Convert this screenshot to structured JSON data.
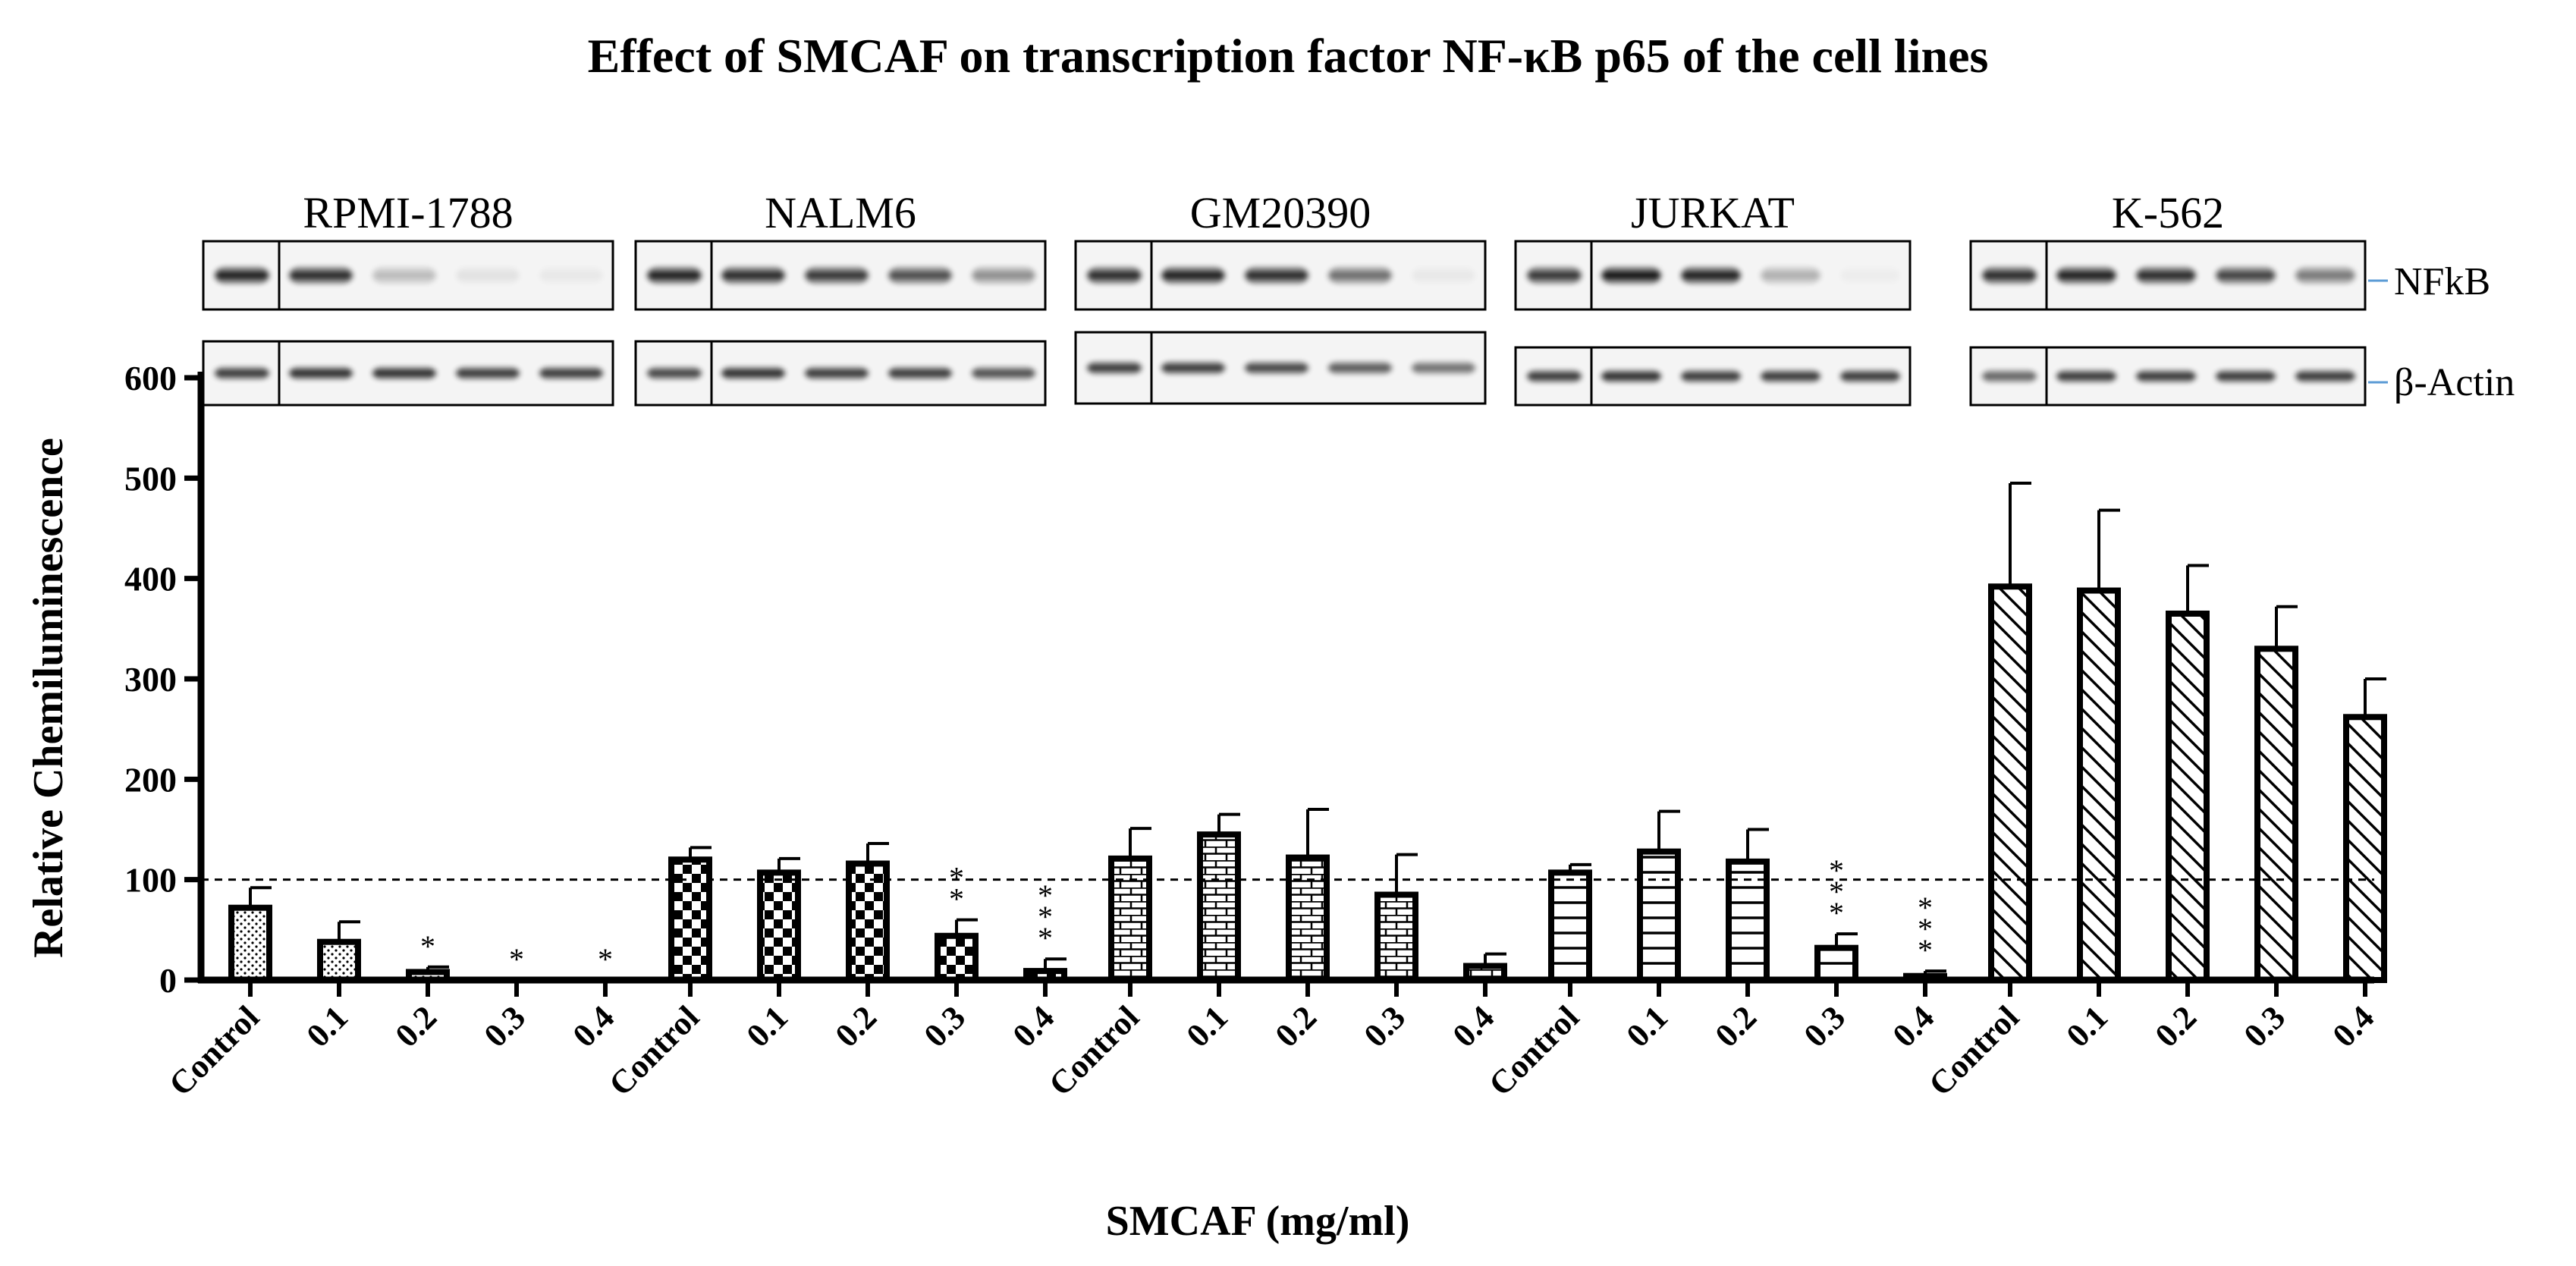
{
  "chart_data": {
    "type": "bar",
    "title": "Effect of SMCAF on transcription factor NF-κB p65 of the cell lines",
    "xlabel": "SMCAF (mg/ml)",
    "ylabel": "Relative Chemiluminescence",
    "ylim": [
      0,
      600
    ],
    "yticks": [
      0,
      100,
      200,
      300,
      400,
      500,
      600
    ],
    "reference_line": 100,
    "grid": false,
    "categories": [
      "Control",
      "0.1",
      "0.2",
      "0.3",
      "0.4"
    ],
    "series": [
      {
        "name": "RPMI-1788",
        "pattern": "dots",
        "values": [
          72,
          38,
          8,
          0,
          0
        ],
        "errors": [
          20,
          20,
          5,
          0,
          0
        ],
        "significance": [
          "",
          "",
          "*",
          "*",
          "*"
        ]
      },
      {
        "name": "NALM6",
        "pattern": "checker",
        "values": [
          120,
          107,
          116,
          44,
          9
        ],
        "errors": [
          12,
          14,
          20,
          16,
          12
        ],
        "significance": [
          "",
          "",
          "",
          "**",
          "***"
        ]
      },
      {
        "name": "GM20390",
        "pattern": "brick",
        "values": [
          121,
          145,
          122,
          85,
          14
        ],
        "errors": [
          30,
          20,
          48,
          40,
          12
        ],
        "significance": [
          "",
          "",
          "",
          "",
          ""
        ]
      },
      {
        "name": "JURKAT",
        "pattern": "hlines",
        "values": [
          107,
          128,
          118,
          32,
          4
        ],
        "errors": [
          8,
          40,
          32,
          14,
          5
        ],
        "significance": [
          "",
          "",
          "",
          "***",
          "***"
        ]
      },
      {
        "name": "K-562",
        "pattern": "diagonal",
        "values": [
          392,
          388,
          365,
          330,
          262
        ],
        "errors": [
          103,
          80,
          48,
          42,
          38
        ],
        "significance": [
          "",
          "",
          "",
          "",
          ""
        ]
      }
    ],
    "blot_labels": [
      "NFkB",
      "β-Actin"
    ],
    "blot_nfkb_intensity": [
      [
        0.95,
        0.9,
        0.25,
        0.08,
        0.05
      ],
      [
        0.95,
        0.9,
        0.85,
        0.75,
        0.45
      ],
      [
        0.9,
        0.95,
        0.9,
        0.6,
        0.05
      ],
      [
        0.85,
        1.0,
        0.95,
        0.3,
        0.03
      ],
      [
        0.9,
        0.95,
        0.9,
        0.8,
        0.55
      ]
    ],
    "blot_actin_intensity": [
      [
        0.85,
        0.9,
        0.9,
        0.85,
        0.85
      ],
      [
        0.8,
        0.9,
        0.85,
        0.85,
        0.75
      ],
      [
        0.85,
        0.85,
        0.8,
        0.7,
        0.6
      ],
      [
        0.85,
        0.9,
        0.85,
        0.85,
        0.85
      ],
      [
        0.65,
        0.85,
        0.85,
        0.85,
        0.85
      ]
    ]
  }
}
